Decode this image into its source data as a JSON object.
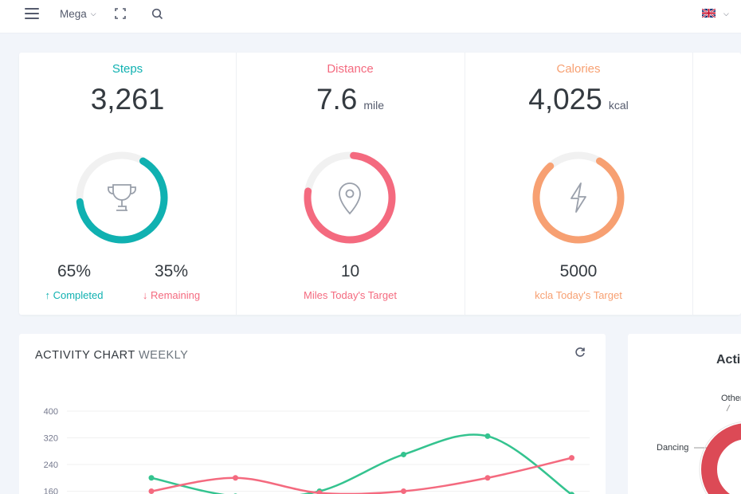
{
  "topbar": {
    "menu_icon": "hamburger-icon",
    "mega_label": "Mega",
    "fullscreen_icon": "fullscreen-icon",
    "search_icon": "search-icon",
    "language_icon": "uk-flag-icon"
  },
  "stats": {
    "steps": {
      "title": "Steps",
      "value": "3,261",
      "completed_pct": "65%",
      "remaining_pct": "35%",
      "completed_label": "↑ Completed",
      "remaining_label": "↓ Remaining",
      "progress": 0.65,
      "color": "#10b1b1",
      "icon": "trophy-icon"
    },
    "distance": {
      "title": "Distance",
      "value": "7.6",
      "unit": "mile",
      "target_value": "10",
      "target_label": "Miles Today's Target",
      "progress": 0.76,
      "color": "#f46a7f",
      "icon": "map-pin-icon"
    },
    "calories": {
      "title": "Calories",
      "value": "4,025",
      "unit": "kcal",
      "target_value": "5000",
      "target_label": "kcla Today's Target",
      "progress": 0.8,
      "color": "#f7a072",
      "icon": "lightning-icon"
    }
  },
  "activity_chart": {
    "title": "ACTIVITY CHART",
    "subtitle": "WEEKLY",
    "refresh_icon": "refresh-icon"
  },
  "chart_data": {
    "type": "line",
    "x": [
      1,
      2,
      3,
      4,
      5,
      6
    ],
    "yticks": [
      "400",
      "320",
      "240",
      "160"
    ],
    "ylim": [
      130,
      400
    ],
    "series": [
      {
        "color": "#34c38f",
        "values": [
          200,
          145,
          160,
          270,
          325,
          150
        ]
      },
      {
        "color": "#f46a7f",
        "values": [
          160,
          200,
          155,
          160,
          200,
          260
        ]
      }
    ]
  },
  "right_panel": {
    "title": "Acti",
    "labels": [
      "Other",
      "Dancing"
    ],
    "donut_color": "#dc4a56"
  }
}
